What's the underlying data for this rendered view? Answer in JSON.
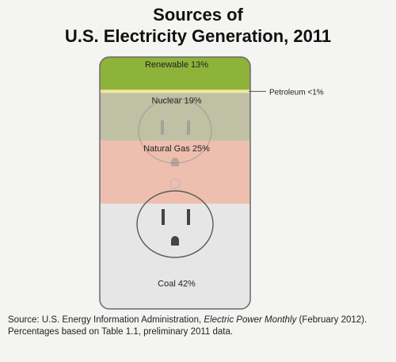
{
  "title_line1": "Sources of",
  "title_line2": "U.S. Electricity Generation, 2011",
  "chart_data": {
    "type": "bar",
    "orientation": "stacked-vertical",
    "unit": "%",
    "segments": [
      {
        "name": "Renewable",
        "value": 13,
        "label": "Renewable 13%",
        "color": "#8db33a"
      },
      {
        "name": "Petroleum",
        "value": 1,
        "label": "Petroleum <1%",
        "color": "#f2e79a",
        "callout": true
      },
      {
        "name": "Nuclear",
        "value": 19,
        "label": "Nuclear 19%",
        "color": "#bfc0a4"
      },
      {
        "name": "Natural Gas",
        "value": 25,
        "label": "Natural Gas 25%",
        "color": "#eebfae"
      },
      {
        "name": "Coal",
        "value": 42,
        "label": "Coal 42%",
        "color": "#e6e6e6"
      }
    ]
  },
  "source": {
    "prefix": "Source: U.S. Energy Information Administration, ",
    "publication": "Electric Power Monthly",
    "suffix": " (February 2012). Percentages based on Table 1.1, preliminary 2011 data."
  }
}
